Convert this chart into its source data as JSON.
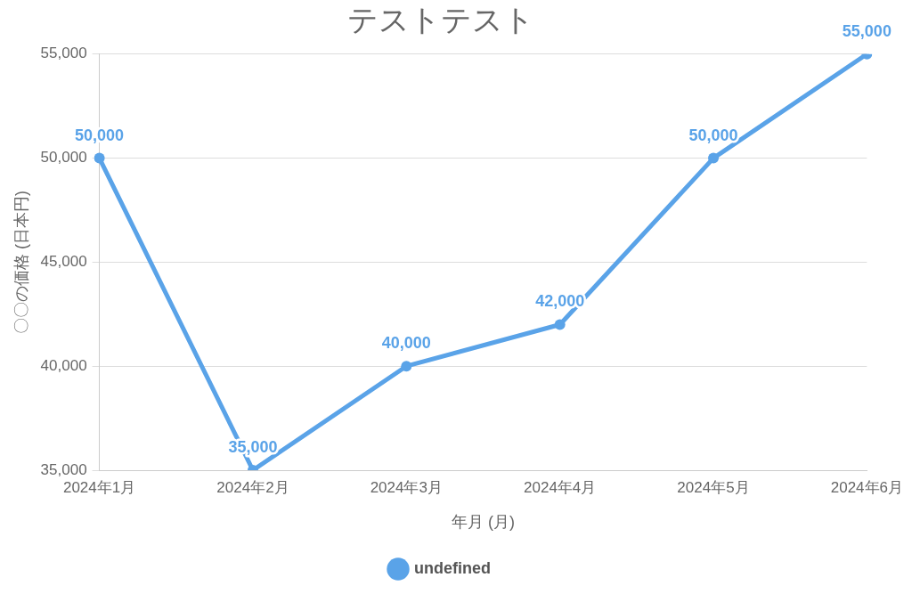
{
  "chart_data": {
    "type": "line",
    "title": "テストテスト",
    "xlabel": "年月 (月)",
    "ylabel": "〇〇の価格 (日本円)",
    "categories": [
      "2024年1月",
      "2024年2月",
      "2024年3月",
      "2024年4月",
      "2024年5月",
      "2024年6月"
    ],
    "series": [
      {
        "name": "undefined",
        "color": "#5aa3e8",
        "values": [
          50000,
          35000,
          40000,
          42000,
          50000,
          55000
        ],
        "value_labels": [
          "50,000",
          "35,000",
          "40,000",
          "42,000",
          "50,000",
          "55,000"
        ]
      }
    ],
    "ylim": [
      35000,
      55000
    ],
    "yticks": [
      {
        "value": 35000,
        "label": "35,000"
      },
      {
        "value": 40000,
        "label": "40,000"
      },
      {
        "value": 45000,
        "label": "45,000"
      },
      {
        "value": 50000,
        "label": "50,000"
      },
      {
        "value": 55000,
        "label": "55,000"
      }
    ],
    "grid": "y",
    "legend": "bottom",
    "marker": "circle",
    "line_style": "solid"
  }
}
